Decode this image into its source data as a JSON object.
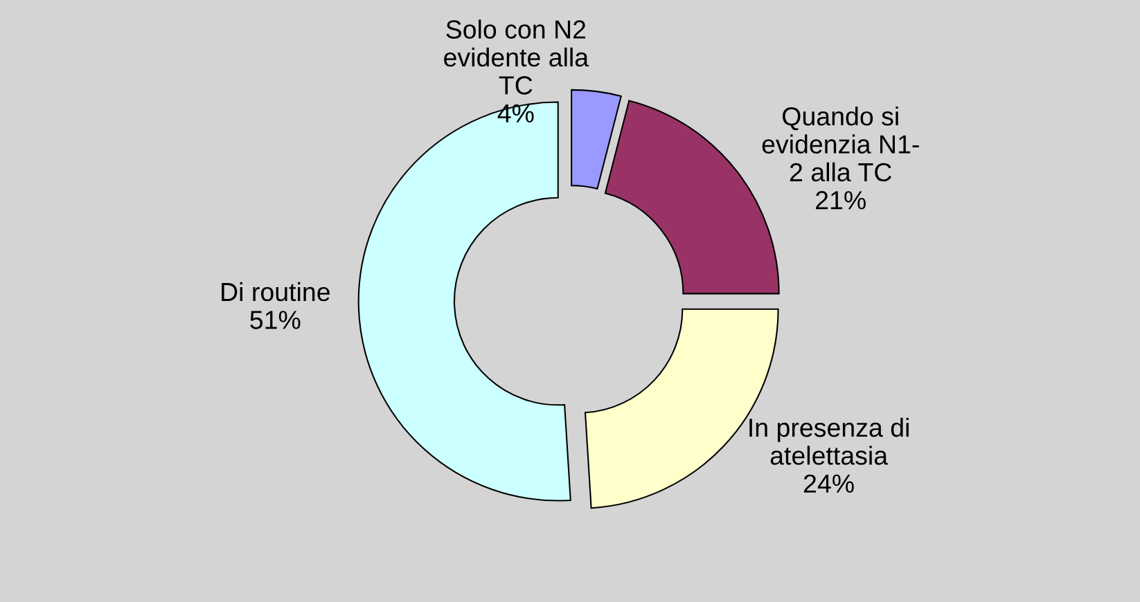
{
  "chart_data": {
    "type": "donut",
    "categories": [
      "Solo con N2\nevidente alla\nTC",
      "Quando si\nevidenzia N1-\n2 alla TC",
      "In presenza di\natelettasia",
      "Di routine"
    ],
    "values": [
      4,
      21,
      24,
      51
    ],
    "value_labels": [
      "4%",
      "21%",
      "24%",
      "51%"
    ],
    "colors": [
      "#9999ff",
      "#993366",
      "#ffffcc",
      "#ccffff"
    ],
    "legend": false
  }
}
